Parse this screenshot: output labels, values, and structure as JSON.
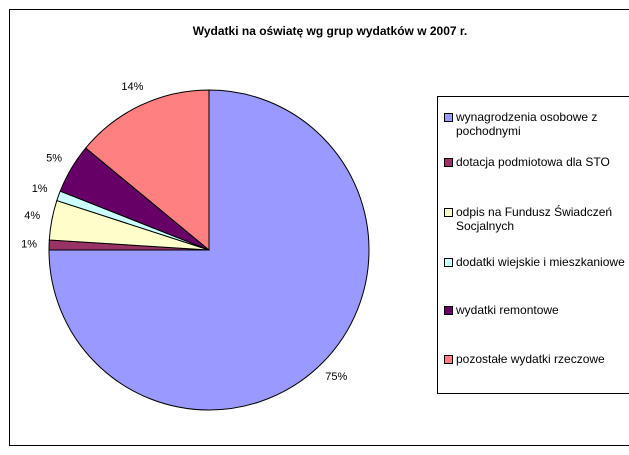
{
  "chart_data": {
    "type": "pie",
    "title": "Wydatki na oświatę wg grup wydatków w 2007 r.",
    "categories": [
      "wynagrodzenia osobowe z pochodnymi",
      "dotacja podmiotowa dla STO",
      "odpis na Fundusz Świadczeń Socjalnych",
      "dodatki wiejskie i mieszkaniowe",
      "wydatki remontowe",
      "pozostałe wydatki rzeczowe"
    ],
    "values": [
      75,
      1,
      4,
      1,
      5,
      14
    ],
    "value_labels": [
      "75%",
      "1%",
      "4%",
      "1%",
      "5%",
      "14%"
    ],
    "colors": [
      "#9999ff",
      "#993366",
      "#ffffcc",
      "#ccffff",
      "#660066",
      "#ff8080"
    ],
    "legend": "right"
  }
}
